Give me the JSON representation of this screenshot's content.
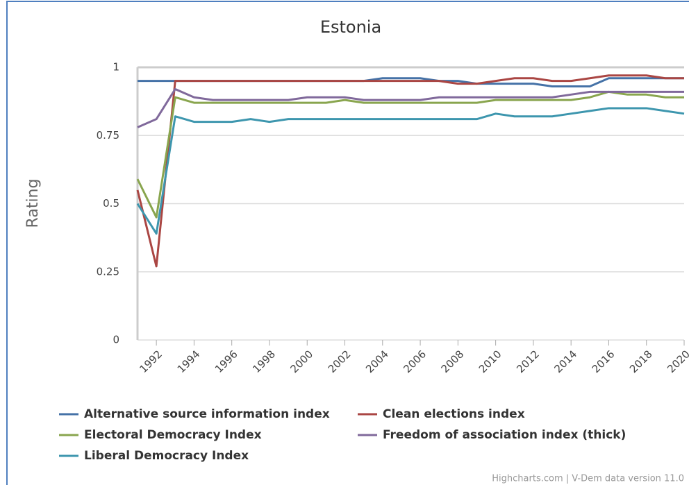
{
  "chart_data": {
    "type": "line",
    "title": "Estonia",
    "y_label": "Rating",
    "credits": "Highcharts.com | V-Dem data version 11.0",
    "x": [
      1991,
      1992,
      1993,
      1994,
      1995,
      1996,
      1997,
      1998,
      1999,
      2000,
      2001,
      2002,
      2003,
      2004,
      2005,
      2006,
      2007,
      2008,
      2009,
      2010,
      2011,
      2012,
      2013,
      2014,
      2015,
      2016,
      2017,
      2018,
      2019,
      2020
    ],
    "xlim": [
      1991,
      2020
    ],
    "xticks": [
      1992,
      1994,
      1996,
      1998,
      2000,
      2002,
      2004,
      2006,
      2008,
      2010,
      2012,
      2014,
      2016,
      2018,
      2020
    ],
    "ylim": [
      0,
      1
    ],
    "yticks": [
      0,
      0.25,
      0.5,
      0.75,
      1
    ],
    "grid": true,
    "series": [
      {
        "name": "Alternative source information index",
        "color": "#4572a7",
        "values": [
          0.95,
          0.95,
          0.95,
          0.95,
          0.95,
          0.95,
          0.95,
          0.95,
          0.95,
          0.95,
          0.95,
          0.95,
          0.95,
          0.96,
          0.96,
          0.96,
          0.95,
          0.95,
          0.94,
          0.94,
          0.94,
          0.94,
          0.93,
          0.93,
          0.93,
          0.96,
          0.96,
          0.96,
          0.96,
          0.96
        ]
      },
      {
        "name": "Clean elections index",
        "color": "#aa4643",
        "values": [
          0.55,
          0.27,
          0.95,
          0.95,
          0.95,
          0.95,
          0.95,
          0.95,
          0.95,
          0.95,
          0.95,
          0.95,
          0.95,
          0.95,
          0.95,
          0.95,
          0.95,
          0.94,
          0.94,
          0.95,
          0.96,
          0.96,
          0.95,
          0.95,
          0.96,
          0.97,
          0.97,
          0.97,
          0.96,
          0.96
        ]
      },
      {
        "name": "Electoral Democracy Index",
        "color": "#89a54e",
        "values": [
          0.59,
          0.45,
          0.89,
          0.87,
          0.87,
          0.87,
          0.87,
          0.87,
          0.87,
          0.87,
          0.87,
          0.88,
          0.87,
          0.87,
          0.87,
          0.87,
          0.87,
          0.87,
          0.87,
          0.88,
          0.88,
          0.88,
          0.88,
          0.88,
          0.89,
          0.91,
          0.9,
          0.9,
          0.89,
          0.89
        ]
      },
      {
        "name": "Freedom of association index (thick)",
        "color": "#80699b",
        "values": [
          0.78,
          0.81,
          0.92,
          0.89,
          0.88,
          0.88,
          0.88,
          0.88,
          0.88,
          0.89,
          0.89,
          0.89,
          0.88,
          0.88,
          0.88,
          0.88,
          0.89,
          0.89,
          0.89,
          0.89,
          0.89,
          0.89,
          0.89,
          0.9,
          0.91,
          0.91,
          0.91,
          0.91,
          0.91,
          0.91
        ]
      },
      {
        "name": "Liberal Democracy Index",
        "color": "#3d96ae",
        "values": [
          0.5,
          0.39,
          0.82,
          0.8,
          0.8,
          0.8,
          0.81,
          0.8,
          0.81,
          0.81,
          0.81,
          0.81,
          0.81,
          0.81,
          0.81,
          0.81,
          0.81,
          0.81,
          0.81,
          0.83,
          0.82,
          0.82,
          0.82,
          0.83,
          0.84,
          0.85,
          0.85,
          0.85,
          0.84,
          0.83
        ]
      }
    ]
  }
}
